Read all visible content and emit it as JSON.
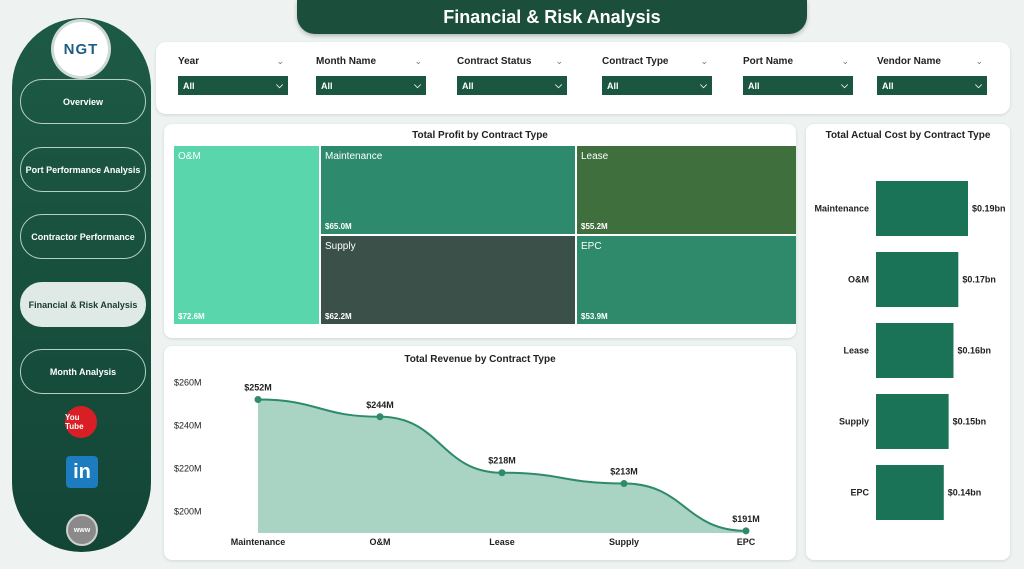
{
  "header": {
    "title": "Financial & Risk Analysis"
  },
  "sidebar": {
    "logo": "NGT",
    "items": [
      {
        "label": "Overview"
      },
      {
        "label": "Port Performance Analysis"
      },
      {
        "label": "Contractor Performance"
      },
      {
        "label": "Financial & Risk Analysis"
      },
      {
        "label": "Month Analysis"
      }
    ],
    "social": {
      "youtube": "You Tube",
      "linkedin": "in",
      "web": "www"
    }
  },
  "filters": [
    {
      "label": "Year",
      "value": "All"
    },
    {
      "label": "Month Name",
      "value": "All"
    },
    {
      "label": "Contract Status",
      "value": "All"
    },
    {
      "label": "Contract Type",
      "value": "All"
    },
    {
      "label": "Port Name",
      "value": "All"
    },
    {
      "label": "Vendor Name",
      "value": "All"
    }
  ],
  "chart_data": [
    {
      "type": "treemap",
      "title": "Total Profit by Contract Type",
      "categories": [
        "O&M",
        "Maintenance",
        "Lease",
        "Supply",
        "EPC"
      ],
      "values": [
        72.6,
        65.0,
        55.2,
        62.2,
        53.9
      ],
      "value_labels": [
        "$72.6M",
        "$65.0M",
        "$55.2M",
        "$62.2M",
        "$53.9M"
      ],
      "colors": [
        "#5ad6ad",
        "#2d8a6c",
        "#3f6f3c",
        "#3a5048",
        "#2e8a6b"
      ]
    },
    {
      "type": "area",
      "title": "Total Revenue by Contract Type",
      "categories": [
        "Maintenance",
        "O&M",
        "Lease",
        "Supply",
        "EPC"
      ],
      "values": [
        252,
        244,
        218,
        213,
        191
      ],
      "value_labels": [
        "$252M",
        "$244M",
        "$218M",
        "$213M",
        "$191M"
      ],
      "yticks": [
        "$200M",
        "$220M",
        "$240M",
        "$260M"
      ],
      "ylim": [
        190,
        262
      ],
      "colors": {
        "fill": "#a9d3c3",
        "line": "#2e8a6b"
      }
    },
    {
      "type": "bar",
      "orientation": "horizontal",
      "title": "Total Actual Cost by Contract Type",
      "categories": [
        "Maintenance",
        "O&M",
        "Lease",
        "Supply",
        "EPC"
      ],
      "values": [
        0.19,
        0.17,
        0.16,
        0.15,
        0.14
      ],
      "value_labels": [
        "$0.19bn",
        "$0.17bn",
        "$0.16bn",
        "$0.15bn",
        "$0.14bn"
      ],
      "colors": {
        "bar": "#1b7357"
      }
    }
  ]
}
